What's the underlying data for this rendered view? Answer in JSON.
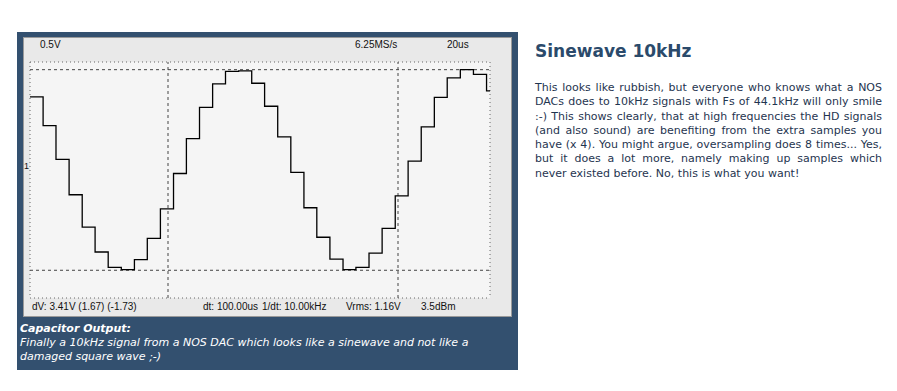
{
  "chart_data": {
    "type": "line",
    "x": [
      0,
      5.7,
      11.3,
      17,
      22.7,
      28.3,
      34,
      39.7,
      45.4,
      51,
      56.7,
      62.4,
      68,
      73.7,
      79.4,
      85,
      90.7,
      96.4,
      102,
      107.7,
      113.4,
      119.1,
      124.7,
      130.4,
      136.1,
      141.7,
      147.4,
      153.1,
      158.8,
      164.4,
      170.1,
      175.8,
      181.4,
      187.1,
      192.8,
      198.5,
      200
    ],
    "values": [
      1.21,
      0.72,
      0.15,
      -0.45,
      -1.0,
      -1.42,
      -1.68,
      -1.72,
      -1.55,
      -1.19,
      -0.69,
      -0.09,
      0.5,
      1.03,
      1.43,
      1.64,
      1.65,
      1.44,
      1.05,
      0.53,
      -0.07,
      -0.67,
      -1.17,
      -1.54,
      -1.72,
      -1.68,
      -1.44,
      -1.02,
      -0.47,
      0.12,
      0.7,
      1.2,
      1.53,
      1.67,
      1.59,
      1.31,
      1.31
    ],
    "color": "#000000",
    "line_style": "step",
    "xlim": [
      0,
      200
    ],
    "xticks": [
      0,
      20,
      40,
      60,
      80,
      100,
      120,
      140,
      160,
      180,
      200
    ],
    "ylim": [
      -2.2,
      1.8
    ],
    "yticks": [
      -2.2,
      -1.7,
      -1.2,
      -0.7,
      -0.2,
      0.3,
      0.8,
      1.3,
      1.8
    ],
    "grid": true,
    "tick_labels": false,
    "cursors": {
      "x": [
        60,
        160
      ],
      "y": [
        1.67,
        -1.73
      ]
    },
    "channel_marker": "1",
    "header": [
      "0.5V",
      "6.25MS/s",
      "20us"
    ],
    "footer": [
      "dV: 3.41V (1.67) (-1.73)",
      "dt: 100.00us",
      "1/dt: 10.00kHz",
      "Vrms: 1.16V",
      "3.5dBm"
    ]
  },
  "caption": {
    "title": "Capacitor Output:",
    "text": "Finally a 10kHz signal from a NOS DAC which looks like a sinewave and not like a damaged square wave ;-)"
  },
  "side": {
    "title": "Sinewave 10kHz",
    "text": "This looks like rubbish, but everyone who knows what a NOS DACs does to 10kHz signals with Fs of 44.1kHz will only smile :-) This shows clearly, that at high frequencies the HD signals (and also sound) are benefiting from the extra samples you have (x 4). You might argue, oversampling does 8 times... Yes, but it does a lot more, namely making up samples which never existed before. No, this is what you want!"
  }
}
